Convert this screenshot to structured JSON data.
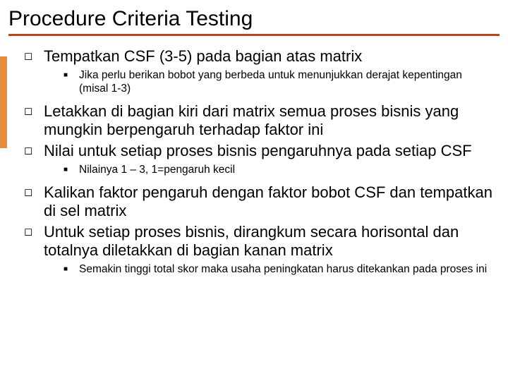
{
  "colors": {
    "accent_bar": "#e88a3c",
    "underline": "#b24a1e",
    "background": "#ffffff",
    "text": "#000000"
  },
  "title": "Procedure Criteria Testing",
  "items": [
    {
      "level": 1,
      "text": "Tempatkan CSF (3-5) pada bagian atas matrix"
    },
    {
      "level": 2,
      "text": "Jika perlu berikan bobot yang berbeda untuk menunjukkan derajat kepentingan (misal 1-3)"
    },
    {
      "level": 1,
      "text": "Letakkan di bagian kiri dari matrix semua proses bisnis yang mungkin berpengaruh terhadap faktor ini"
    },
    {
      "level": 1,
      "text": "Nilai untuk setiap proses bisnis pengaruhnya pada setiap CSF"
    },
    {
      "level": 2,
      "text": "Nilainya 1 – 3, 1=pengaruh kecil"
    },
    {
      "level": 1,
      "text": "Kalikan faktor pengaruh dengan faktor bobot CSF dan tempatkan di sel matrix"
    },
    {
      "level": 1,
      "text": "Untuk setiap proses bisnis, dirangkum secara horisontal dan totalnya diletakkan di bagian kanan matrix"
    },
    {
      "level": 2,
      "text": "Semakin tinggi total skor maka usaha peningkatan harus ditekankan pada proses ini"
    }
  ],
  "bullets": {
    "lvl1": "◻",
    "lvl2": "■"
  }
}
